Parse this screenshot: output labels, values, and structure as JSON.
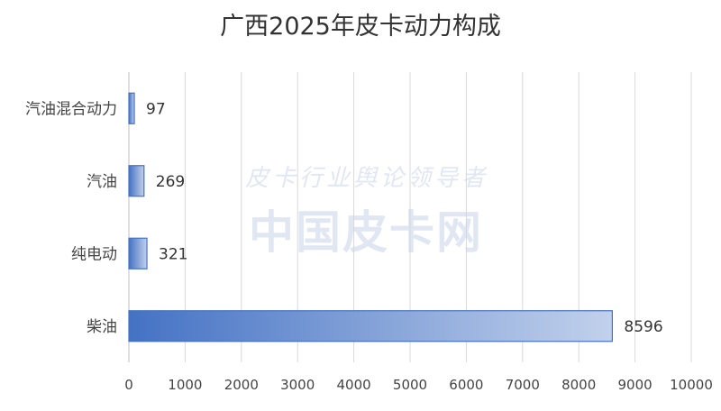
{
  "chart_data": {
    "type": "bar",
    "orientation": "horizontal",
    "title": "广西2025年皮卡动力构成",
    "categories": [
      "汽油混合动力",
      "汽油",
      "纯电动",
      "柴油"
    ],
    "values": [
      97,
      269,
      321,
      8596
    ],
    "data_labels": [
      "97",
      "269",
      "321",
      "8596"
    ],
    "xlim": [
      0,
      10000
    ],
    "x_ticks": [
      "0",
      "1000",
      "2000",
      "3000",
      "4000",
      "5000",
      "6000",
      "7000",
      "8000",
      "9000",
      "10000"
    ],
    "grid": "vertical",
    "legend": "none",
    "bar_color": "#4472c4"
  },
  "watermark": {
    "line1": "皮卡行业舆论领导者",
    "line2": "中国皮卡网"
  }
}
